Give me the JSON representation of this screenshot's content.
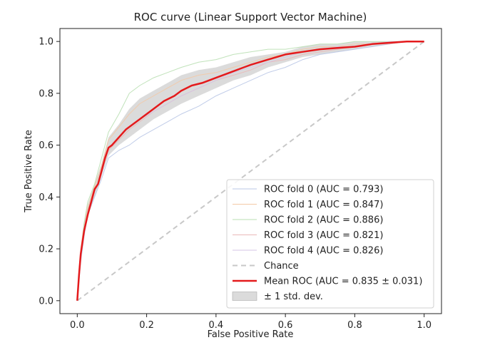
{
  "chart_data": {
    "type": "line",
    "title": "ROC curve (Linear Support Vector Machine)",
    "xlabel": "False Positive Rate",
    "ylabel": "True Positive Rate",
    "xlim": [
      -0.05,
      1.05
    ],
    "ylim": [
      -0.05,
      1.05
    ],
    "x_ticks": [
      "0.0",
      "0.2",
      "0.4",
      "0.6",
      "0.8",
      "1.0"
    ],
    "y_ticks": [
      "0.0",
      "0.2",
      "0.4",
      "0.6",
      "0.8",
      "1.0"
    ],
    "grid": false,
    "legend_position": "lower-right",
    "colors": {
      "fold_0": "#b9c7e6",
      "fold_1": "#f3c9a6",
      "fold_2": "#b9dfb3",
      "fold_3": "#eab8b8",
      "fold_4": "#d4c6e6",
      "chance": "#c8c8c8",
      "mean": "#e41a1c",
      "band": "#bdbdbd"
    },
    "series": [
      {
        "name": "ROC fold 0 (AUC = 0.793)",
        "x": [
          0,
          0.01,
          0.02,
          0.03,
          0.05,
          0.07,
          0.09,
          0.12,
          0.15,
          0.18,
          0.22,
          0.26,
          0.3,
          0.35,
          0.4,
          0.45,
          0.5,
          0.55,
          0.6,
          0.65,
          0.7,
          0.75,
          0.8,
          0.85,
          0.9,
          0.95,
          1.0
        ],
        "y": [
          0,
          0.15,
          0.25,
          0.33,
          0.4,
          0.47,
          0.55,
          0.58,
          0.6,
          0.63,
          0.66,
          0.69,
          0.72,
          0.75,
          0.79,
          0.82,
          0.85,
          0.88,
          0.9,
          0.93,
          0.95,
          0.96,
          0.97,
          0.98,
          0.99,
          1.0,
          1.0
        ]
      },
      {
        "name": "ROC fold 1 (AUC = 0.847)",
        "x": [
          0,
          0.01,
          0.02,
          0.03,
          0.05,
          0.07,
          0.09,
          0.12,
          0.15,
          0.18,
          0.22,
          0.26,
          0.3,
          0.35,
          0.4,
          0.45,
          0.5,
          0.55,
          0.6,
          0.65,
          0.7,
          0.75,
          0.8,
          0.85,
          0.9,
          0.95,
          1.0
        ],
        "y": [
          0,
          0.2,
          0.3,
          0.36,
          0.44,
          0.52,
          0.62,
          0.67,
          0.72,
          0.76,
          0.79,
          0.82,
          0.85,
          0.87,
          0.88,
          0.9,
          0.92,
          0.94,
          0.95,
          0.97,
          0.98,
          0.98,
          0.99,
          0.99,
          1.0,
          1.0,
          1.0
        ]
      },
      {
        "name": "ROC fold 2 (AUC = 0.886)",
        "x": [
          0,
          0.01,
          0.02,
          0.03,
          0.05,
          0.07,
          0.09,
          0.12,
          0.15,
          0.18,
          0.22,
          0.26,
          0.3,
          0.35,
          0.4,
          0.45,
          0.5,
          0.55,
          0.6,
          0.65,
          0.7,
          0.75,
          0.8,
          0.85,
          0.9,
          0.95,
          1.0
        ],
        "y": [
          0,
          0.18,
          0.3,
          0.38,
          0.45,
          0.55,
          0.65,
          0.72,
          0.8,
          0.83,
          0.86,
          0.88,
          0.9,
          0.92,
          0.93,
          0.95,
          0.96,
          0.97,
          0.97,
          0.98,
          0.99,
          0.99,
          1.0,
          1.0,
          1.0,
          1.0,
          1.0
        ]
      },
      {
        "name": "ROC fold 3 (AUC = 0.821)",
        "x": [
          0,
          0.01,
          0.02,
          0.03,
          0.05,
          0.07,
          0.09,
          0.12,
          0.15,
          0.18,
          0.22,
          0.26,
          0.3,
          0.35,
          0.4,
          0.45,
          0.5,
          0.55,
          0.6,
          0.65,
          0.7,
          0.75,
          0.8,
          0.85,
          0.9,
          0.95,
          1.0
        ],
        "y": [
          0,
          0.17,
          0.28,
          0.35,
          0.42,
          0.5,
          0.58,
          0.62,
          0.66,
          0.69,
          0.73,
          0.76,
          0.79,
          0.82,
          0.85,
          0.87,
          0.89,
          0.92,
          0.93,
          0.95,
          0.96,
          0.97,
          0.98,
          0.99,
          0.99,
          1.0,
          1.0
        ]
      },
      {
        "name": "ROC fold 4 (AUC = 0.826)",
        "x": [
          0,
          0.01,
          0.02,
          0.03,
          0.05,
          0.07,
          0.09,
          0.12,
          0.15,
          0.18,
          0.22,
          0.26,
          0.3,
          0.35,
          0.4,
          0.45,
          0.5,
          0.55,
          0.6,
          0.65,
          0.7,
          0.75,
          0.8,
          0.85,
          0.9,
          0.95,
          1.0
        ],
        "y": [
          0,
          0.16,
          0.27,
          0.34,
          0.42,
          0.5,
          0.59,
          0.63,
          0.67,
          0.7,
          0.73,
          0.76,
          0.79,
          0.82,
          0.85,
          0.88,
          0.9,
          0.92,
          0.94,
          0.96,
          0.97,
          0.98,
          0.98,
          0.99,
          1.0,
          1.0,
          1.0
        ]
      }
    ],
    "chance": {
      "name": "Chance",
      "x": [
        0,
        1
      ],
      "y": [
        0,
        1
      ]
    },
    "mean": {
      "name": "Mean ROC (AUC = 0.835 ± 0.031)",
      "x": [
        0,
        0.005,
        0.01,
        0.02,
        0.03,
        0.04,
        0.05,
        0.06,
        0.07,
        0.08,
        0.09,
        0.1,
        0.12,
        0.14,
        0.16,
        0.18,
        0.2,
        0.22,
        0.25,
        0.28,
        0.3,
        0.33,
        0.36,
        0.4,
        0.44,
        0.48,
        0.5,
        0.55,
        0.6,
        0.65,
        0.7,
        0.75,
        0.8,
        0.85,
        0.9,
        0.95,
        1.0
      ],
      "y": [
        0,
        0.1,
        0.18,
        0.27,
        0.33,
        0.38,
        0.43,
        0.45,
        0.5,
        0.55,
        0.59,
        0.6,
        0.63,
        0.66,
        0.68,
        0.7,
        0.72,
        0.74,
        0.77,
        0.79,
        0.81,
        0.83,
        0.84,
        0.86,
        0.88,
        0.9,
        0.91,
        0.93,
        0.95,
        0.96,
        0.97,
        0.975,
        0.98,
        0.99,
        0.995,
        1.0,
        1.0
      ]
    },
    "band": {
      "name": "± 1 std. dev.",
      "x": [
        0,
        0.01,
        0.02,
        0.03,
        0.05,
        0.07,
        0.09,
        0.12,
        0.15,
        0.18,
        0.22,
        0.26,
        0.3,
        0.35,
        0.4,
        0.45,
        0.5,
        0.55,
        0.6,
        0.65,
        0.7,
        0.75,
        0.8,
        0.85,
        0.9,
        0.95,
        1.0
      ],
      "upper": [
        0.03,
        0.2,
        0.3,
        0.37,
        0.45,
        0.53,
        0.63,
        0.68,
        0.74,
        0.78,
        0.81,
        0.84,
        0.87,
        0.89,
        0.9,
        0.92,
        0.94,
        0.95,
        0.96,
        0.98,
        0.99,
        0.99,
        1.0,
        1.0,
        1.0,
        1.0,
        1.0
      ],
      "lower": [
        0,
        0.15,
        0.25,
        0.33,
        0.4,
        0.48,
        0.56,
        0.6,
        0.63,
        0.66,
        0.7,
        0.73,
        0.76,
        0.79,
        0.82,
        0.85,
        0.87,
        0.9,
        0.92,
        0.94,
        0.95,
        0.96,
        0.97,
        0.98,
        0.99,
        1.0,
        1.0
      ]
    },
    "legend": [
      "ROC fold 0 (AUC = 0.793)",
      "ROC fold 1 (AUC = 0.847)",
      "ROC fold 2 (AUC = 0.886)",
      "ROC fold 3 (AUC = 0.821)",
      "ROC fold 4 (AUC = 0.826)",
      "Chance",
      "Mean ROC (AUC = 0.835 ± 0.031)",
      "± 1 std. dev."
    ]
  }
}
